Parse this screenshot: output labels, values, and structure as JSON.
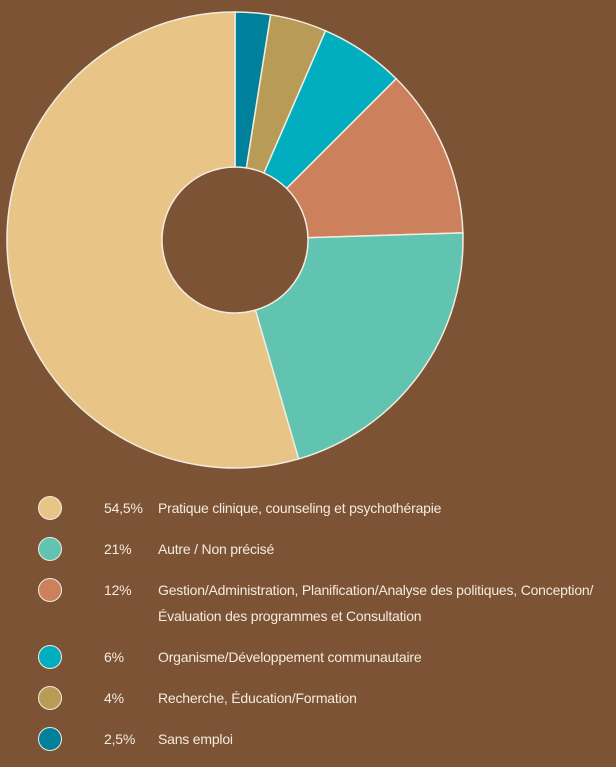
{
  "chart_data": {
    "type": "donut",
    "categories": [
      "Pratique clinique, counseling et psychothérapie",
      "Autre / Non précisé",
      "Gestion/Administration, Planification/Analyse des politiques, Conception/Évaluation des programmes et Consultation",
      "Organisme/Développement communautaire",
      "Recherche, Éducation/Formation",
      "Sans emploi"
    ],
    "values": [
      54.5,
      21,
      12,
      6,
      4,
      2.5
    ],
    "value_labels": [
      "54,5%",
      "21%",
      "12%",
      "6%",
      "4%",
      "2,5%"
    ],
    "colors": [
      "#e8c487",
      "#60c4b0",
      "#cc805c",
      "#00aec0",
      "#b89b56",
      "#00819b"
    ],
    "legend": "bottom"
  }
}
